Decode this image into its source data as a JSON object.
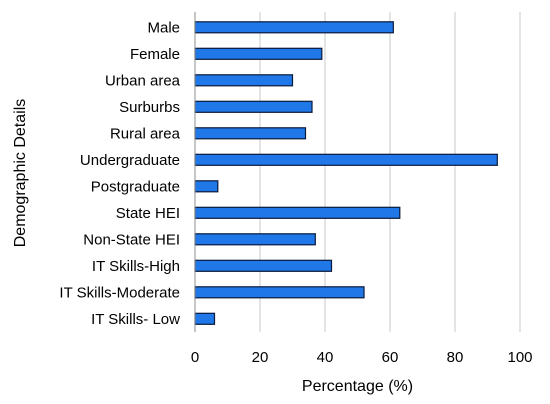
{
  "chart_data": {
    "type": "bar",
    "orientation": "horizontal",
    "categories": [
      "Male",
      "Female",
      "Urban area",
      "Surburbs",
      "Rural area",
      "Undergraduate",
      "Postgraduate",
      "State HEI",
      "Non-State HEI",
      "IT Skills-High",
      "IT Skills-Moderate",
      "IT Skills- Low"
    ],
    "values": [
      61,
      39,
      30,
      36,
      34,
      93,
      7,
      63,
      37,
      42,
      52,
      6
    ],
    "xlabel": "Percentage (%)",
    "ylabel": "Demographic Details",
    "xlim": [
      0,
      100
    ],
    "xticks": [
      "0",
      "20",
      "40",
      "60",
      "80",
      "100"
    ],
    "grid": "vertical",
    "legend": "none",
    "colors": {
      "bar_fill": "#1f77e8",
      "bar_stroke": "#0a1a3a",
      "grid": "#c8c8c8",
      "axis": "#8c8c8c"
    }
  }
}
